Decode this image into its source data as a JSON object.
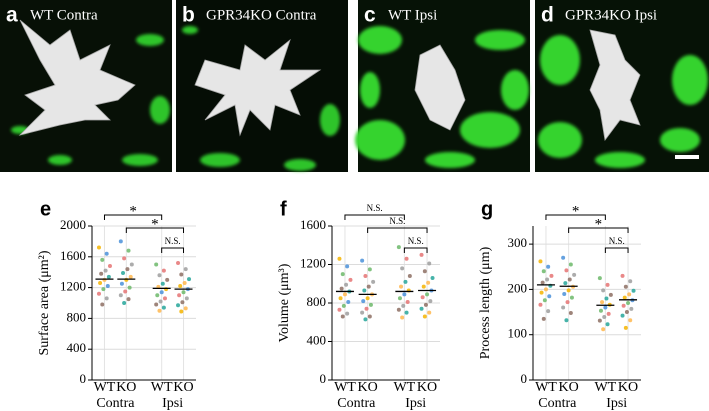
{
  "images": [
    {
      "letter": "a",
      "caption": "WT Contra"
    },
    {
      "letter": "b",
      "caption": "GPR34KO Contra"
    },
    {
      "letter": "c",
      "caption": "WT Ipsi"
    },
    {
      "letter": "d",
      "caption": "GPR34KO Ipsi"
    }
  ],
  "chart_data": [
    {
      "type": "strip",
      "panel": "e",
      "y_label": "Surface area (μm²)",
      "categories": [
        "WT",
        "KO",
        "WT",
        "KO"
      ],
      "groups": [
        "Contra",
        "Ipsi"
      ],
      "ylim": [
        0,
        2000
      ],
      "yticks": [
        0,
        400,
        800,
        1200,
        1600,
        2000
      ],
      "grid": true,
      "point_colors": [
        "#f4b400",
        "#4a90d9",
        "#6cb86a",
        "#e57373",
        "#9e9e9e",
        "#8d6e63",
        "#26a69a",
        "#ffb74d"
      ],
      "points": [
        [
          1720,
          1640,
          1560,
          1480,
          1420,
          1380,
          1340,
          1300,
          1260,
          1220,
          1180,
          1120,
          1060,
          980
        ],
        [
          1800,
          1680,
          1580,
          1500,
          1440,
          1390,
          1340,
          1300,
          1250,
          1200,
          1150,
          1100,
          1050,
          1000
        ],
        [
          1500,
          1420,
          1360,
          1300,
          1250,
          1210,
          1180,
          1140,
          1100,
          1060,
          1020,
          980,
          940,
          900
        ],
        [
          1520,
          1440,
          1370,
          1310,
          1260,
          1220,
          1180,
          1140,
          1100,
          1060,
          1010,
          970,
          930,
          890
        ]
      ],
      "means": [
        1310,
        1310,
        1190,
        1180
      ],
      "comparisons": [
        {
          "from": 0,
          "to": 2,
          "label": "*"
        },
        {
          "from": 1,
          "to": 3,
          "label": "*"
        },
        {
          "from": 2,
          "to": 3,
          "label": "N.S."
        }
      ]
    },
    {
      "type": "strip",
      "panel": "f",
      "y_label": "Volume (μm³)",
      "categories": [
        "WT",
        "KO",
        "WT",
        "KO"
      ],
      "groups": [
        "Contra",
        "Ipsi"
      ],
      "ylim": [
        0,
        1600
      ],
      "yticks": [
        0,
        400,
        800,
        1200,
        1600
      ],
      "grid": true,
      "point_colors": [
        "#f4b400",
        "#4a90d9",
        "#6cb86a",
        "#e57373",
        "#9e9e9e",
        "#8d6e63",
        "#26a69a",
        "#ffb74d"
      ],
      "points": [
        [
          1260,
          1180,
          1100,
          1040,
          990,
          950,
          920,
          890,
          850,
          810,
          770,
          730,
          690,
          660
        ],
        [
          1240,
          1150,
          1080,
          1020,
          970,
          930,
          890,
          850,
          820,
          780,
          740,
          700,
          660,
          630
        ],
        [
          1380,
          1260,
          1160,
          1080,
          1020,
          970,
          930,
          890,
          850,
          810,
          770,
          730,
          700,
          650
        ],
        [
          1300,
          1210,
          1130,
          1060,
          1010,
          970,
          930,
          890,
          860,
          820,
          780,
          740,
          700,
          660
        ]
      ],
      "means": [
        920,
        890,
        920,
        930
      ],
      "comparisons": [
        {
          "from": 0,
          "to": 2,
          "label": "N.S."
        },
        {
          "from": 1,
          "to": 3,
          "label": "N.S."
        },
        {
          "from": 2,
          "to": 3,
          "label": "N.S."
        }
      ]
    },
    {
      "type": "strip",
      "panel": "g",
      "y_label": "Process length (μm)",
      "categories": [
        "WT",
        "KO",
        "WT",
        "KO"
      ],
      "groups": [
        "Contra",
        "Ipsi"
      ],
      "ylim": [
        0,
        340
      ],
      "yticks": [
        0,
        100,
        200,
        300
      ],
      "grid": true,
      "point_colors": [
        "#f4b400",
        "#4a90d9",
        "#6cb86a",
        "#e57373",
        "#9e9e9e",
        "#8d6e63",
        "#26a69a",
        "#ffb74d"
      ],
      "points": [
        [
          262,
          250,
          240,
          230,
          222,
          215,
          208,
          200,
          193,
          185,
          176,
          166,
          152,
          135
        ],
        [
          270,
          255,
          242,
          232,
          222,
          214,
          206,
          198,
          190,
          182,
          172,
          160,
          148,
          132
        ],
        [
          225,
          210,
          198,
          188,
          180,
          172,
          166,
          160,
          153,
          146,
          139,
          131,
          123,
          112
        ],
        [
          230,
          218,
          206,
          197,
          189,
          182,
          176,
          170,
          164,
          157,
          150,
          142,
          132,
          115
        ]
      ],
      "means": [
        210,
        207,
        165,
        177
      ],
      "comparisons": [
        {
          "from": 0,
          "to": 2,
          "label": "*"
        },
        {
          "from": 1,
          "to": 3,
          "label": "*"
        },
        {
          "from": 2,
          "to": 3,
          "label": "N.S."
        }
      ]
    }
  ]
}
